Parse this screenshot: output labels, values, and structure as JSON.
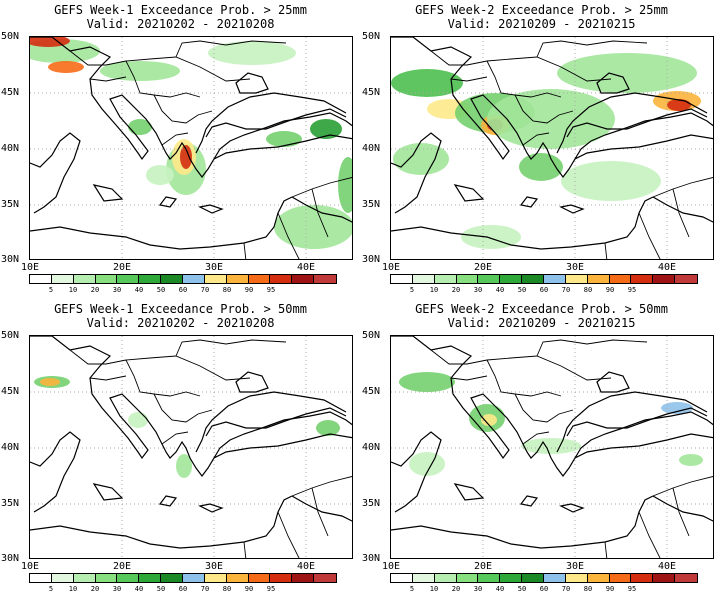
{
  "panels": [
    {
      "title": "GEFS Week-1 Exceedance Prob. > 25mm",
      "valid": "Valid: 20210202 - 20210208",
      "level": "w1_25"
    },
    {
      "title": "GEFS Week-2 Exceedance Prob. > 25mm",
      "valid": "Valid: 20210209 - 20210215",
      "level": "w2_25"
    },
    {
      "title": "GEFS Week-1 Exceedance Prob. > 50mm",
      "valid": "Valid: 20210202 - 20210208",
      "level": "w1_50"
    },
    {
      "title": "GEFS Week-2 Exceedance Prob. > 50mm",
      "valid": "Valid: 20210209 - 20210215",
      "level": "w2_50"
    }
  ],
  "lat_labels": [
    "50N",
    "45N",
    "40N",
    "35N",
    "30N"
  ],
  "lon_labels": [
    "10E",
    "20E",
    "30E",
    "40E"
  ],
  "colorbar": {
    "labels": [
      "5",
      "10",
      "20",
      "30",
      "40",
      "50",
      "60",
      "70",
      "80",
      "90",
      "95"
    ],
    "colors": [
      "#ffffff",
      "#e3f7e0",
      "#b6edb0",
      "#87df80",
      "#57c95a",
      "#2fa83a",
      "#1b8a26",
      "#8fc2ea",
      "#fde98a",
      "#fbb43c",
      "#f66b18",
      "#d42d10",
      "#9e1414",
      "#c03a3a"
    ]
  },
  "colors": {
    "coast": "#000000",
    "grid": "#aaaaaa"
  }
}
